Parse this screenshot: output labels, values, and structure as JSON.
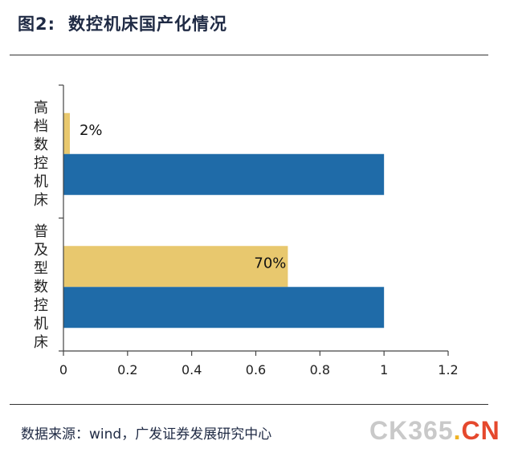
{
  "header": {
    "figure_number": "图2:",
    "title": "数控机床国产化情况"
  },
  "chart_data": {
    "type": "bar",
    "orientation": "horizontal",
    "categories": [
      "高档数控机床",
      "普及型数控机床"
    ],
    "series": [
      {
        "values": [
          0.02,
          0.7
        ],
        "color": "#e8c86e",
        "data_labels": [
          "2%",
          "70%"
        ]
      },
      {
        "values": [
          1,
          1
        ],
        "color": "#1f6ba8"
      }
    ],
    "xlim": [
      0,
      1.2
    ],
    "xticks": [
      "0",
      "0.2",
      "0.4",
      "0.6",
      "0.8",
      "1",
      "1.2"
    ],
    "grid": false,
    "legend": "none"
  },
  "footer": {
    "source": "数据来源：wind，广发证券发展研究中心",
    "logo_main": "CK365",
    "logo_dot": ".",
    "logo_suffix": "CN"
  }
}
